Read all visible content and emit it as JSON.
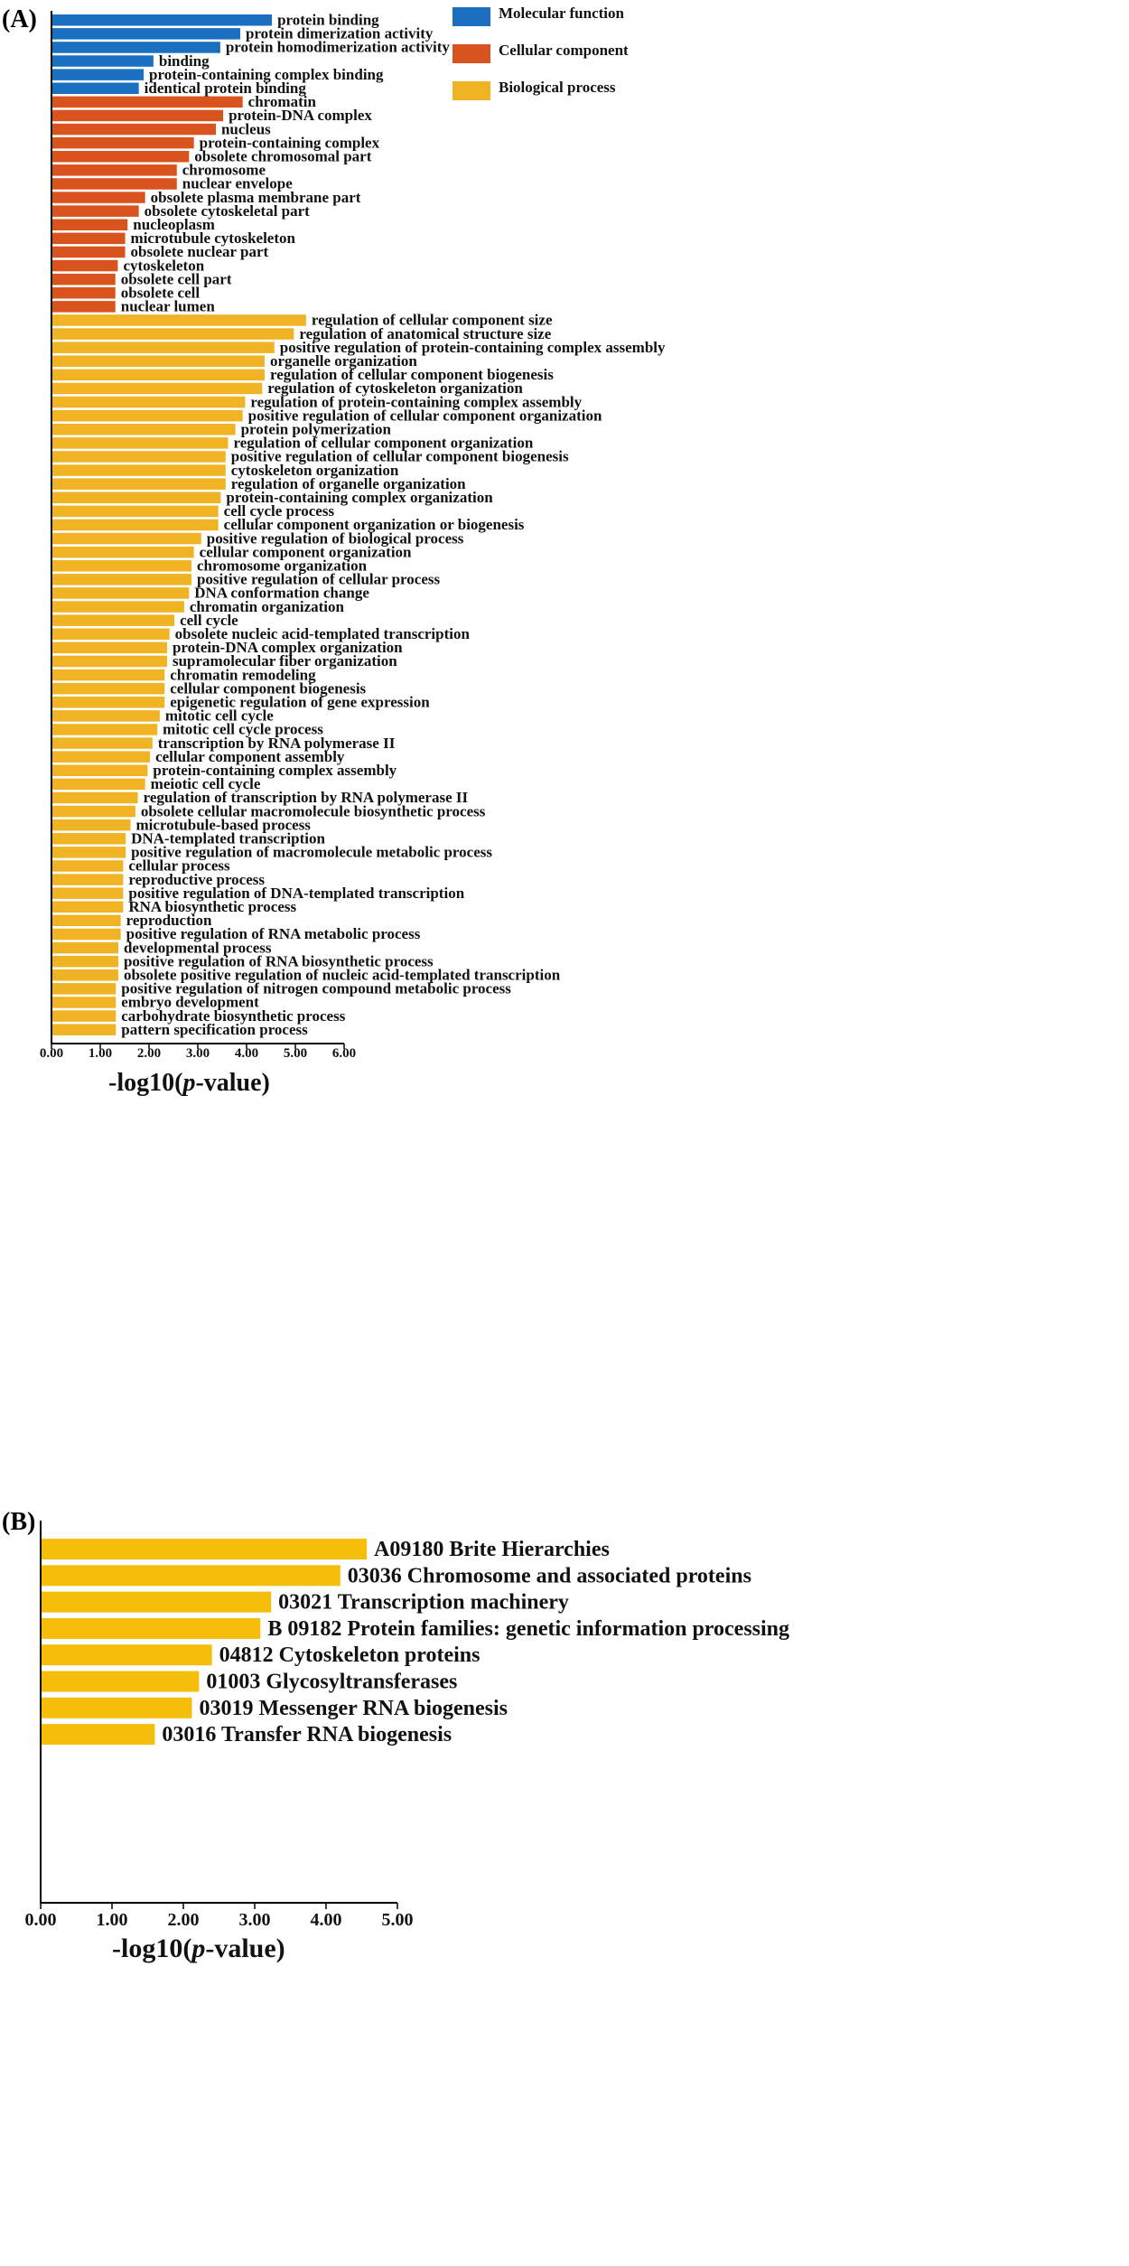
{
  "colors": {
    "molecular_function": "#1a6fc0",
    "cellular_component": "#d9531e",
    "biological_process": "#f0b323",
    "kegg": "#f5be0b"
  },
  "chart_data": [
    {
      "type": "bar",
      "orientation": "horizontal",
      "panel_label": "(A)",
      "xlabel_prefix": "-log10(",
      "xlabel_italic": "p",
      "xlabel_suffix": "-value)",
      "xlim": [
        0,
        6
      ],
      "xticks": [
        "0.00",
        "1.00",
        "2.00",
        "3.00",
        "4.00",
        "5.00",
        "6.00"
      ],
      "legend": [
        {
          "name": "Molecular function",
          "color_key": "molecular_function"
        },
        {
          "name": "Cellular component",
          "color_key": "cellular_component"
        },
        {
          "name": "Biological process",
          "color_key": "biological_process"
        }
      ],
      "bars": [
        {
          "label": "protein binding",
          "value": 4.52,
          "group": "molecular_function"
        },
        {
          "label": "protein dimerization activity",
          "value": 3.87,
          "group": "molecular_function"
        },
        {
          "label": "protein homodimerization activity",
          "value": 3.46,
          "group": "molecular_function"
        },
        {
          "label": "binding",
          "value": 2.09,
          "group": "molecular_function"
        },
        {
          "label": "protein-containing complex binding",
          "value": 1.89,
          "group": "molecular_function"
        },
        {
          "label": "identical protein binding",
          "value": 1.79,
          "group": "molecular_function"
        },
        {
          "label": "chromatin",
          "value": 3.92,
          "group": "cellular_component"
        },
        {
          "label": "protein-DNA complex",
          "value": 3.52,
          "group": "cellular_component"
        },
        {
          "label": "nucleus",
          "value": 3.37,
          "group": "cellular_component"
        },
        {
          "label": "protein-containing complex",
          "value": 2.92,
          "group": "cellular_component"
        },
        {
          "label": "obsolete chromosomal part",
          "value": 2.82,
          "group": "cellular_component"
        },
        {
          "label": "chromosome",
          "value": 2.57,
          "group": "cellular_component"
        },
        {
          "label": "nuclear envelope",
          "value": 2.57,
          "group": "cellular_component"
        },
        {
          "label": "obsolete plasma membrane part",
          "value": 1.92,
          "group": "cellular_component"
        },
        {
          "label": "obsolete cytoskeletal part",
          "value": 1.79,
          "group": "cellular_component"
        },
        {
          "label": "nucleoplasm",
          "value": 1.56,
          "group": "cellular_component"
        },
        {
          "label": "microtubule cytoskeleton",
          "value": 1.51,
          "group": "cellular_component"
        },
        {
          "label": "obsolete nuclear part",
          "value": 1.51,
          "group": "cellular_component"
        },
        {
          "label": "cytoskeleton",
          "value": 1.36,
          "group": "cellular_component"
        },
        {
          "label": "obsolete cell part",
          "value": 1.31,
          "group": "cellular_component"
        },
        {
          "label": "obsolete cell",
          "value": 1.31,
          "group": "cellular_component"
        },
        {
          "label": "nuclear lumen",
          "value": 1.31,
          "group": "cellular_component"
        },
        {
          "label": "regulation of cellular component size",
          "value": 5.22,
          "group": "biological_process"
        },
        {
          "label": "regulation of anatomical structure size",
          "value": 4.97,
          "group": "biological_process"
        },
        {
          "label": "positive regulation of protein-containing complex assembly",
          "value": 4.57,
          "group": "biological_process"
        },
        {
          "label": "organelle organization",
          "value": 4.37,
          "group": "biological_process"
        },
        {
          "label": "regulation of cellular component biogenesis",
          "value": 4.37,
          "group": "biological_process"
        },
        {
          "label": "regulation of cytoskeleton organization",
          "value": 4.32,
          "group": "biological_process"
        },
        {
          "label": "regulation of protein-containing complex assembly",
          "value": 3.97,
          "group": "biological_process"
        },
        {
          "label": "positive regulation of cellular component organization",
          "value": 3.92,
          "group": "biological_process"
        },
        {
          "label": "protein polymerization",
          "value": 3.77,
          "group": "biological_process"
        },
        {
          "label": "regulation of cellular component organization",
          "value": 3.62,
          "group": "biological_process"
        },
        {
          "label": "positive regulation of cellular component biogenesis",
          "value": 3.57,
          "group": "biological_process"
        },
        {
          "label": "cytoskeleton organization",
          "value": 3.57,
          "group": "biological_process"
        },
        {
          "label": "regulation of organelle organization",
          "value": 3.57,
          "group": "biological_process"
        },
        {
          "label": "protein-containing complex organization",
          "value": 3.47,
          "group": "biological_process"
        },
        {
          "label": "cell cycle process",
          "value": 3.42,
          "group": "biological_process"
        },
        {
          "label": "cellular component organization or biogenesis",
          "value": 3.42,
          "group": "biological_process"
        },
        {
          "label": "positive regulation of biological process",
          "value": 3.07,
          "group": "biological_process"
        },
        {
          "label": "cellular component organization",
          "value": 2.92,
          "group": "biological_process"
        },
        {
          "label": "chromosome organization",
          "value": 2.87,
          "group": "biological_process"
        },
        {
          "label": "positive regulation of cellular process",
          "value": 2.87,
          "group": "biological_process"
        },
        {
          "label": "DNA conformation change",
          "value": 2.82,
          "group": "biological_process"
        },
        {
          "label": "chromatin organization",
          "value": 2.72,
          "group": "biological_process"
        },
        {
          "label": "cell cycle",
          "value": 2.52,
          "group": "biological_process"
        },
        {
          "label": "obsolete nucleic acid-templated transcription",
          "value": 2.42,
          "group": "biological_process"
        },
        {
          "label": "protein-DNA complex organization",
          "value": 2.37,
          "group": "biological_process"
        },
        {
          "label": "supramolecular fiber organization",
          "value": 2.37,
          "group": "biological_process"
        },
        {
          "label": "chromatin remodeling",
          "value": 2.32,
          "group": "biological_process"
        },
        {
          "label": "cellular component biogenesis",
          "value": 2.32,
          "group": "biological_process"
        },
        {
          "label": "epigenetic regulation of gene expression",
          "value": 2.32,
          "group": "biological_process"
        },
        {
          "label": "mitotic cell cycle",
          "value": 2.22,
          "group": "biological_process"
        },
        {
          "label": "mitotic cell cycle process",
          "value": 2.17,
          "group": "biological_process"
        },
        {
          "label": "transcription by RNA polymerase II",
          "value": 2.07,
          "group": "biological_process"
        },
        {
          "label": "cellular component assembly",
          "value": 2.02,
          "group": "biological_process"
        },
        {
          "label": "protein-containing complex assembly",
          "value": 1.97,
          "group": "biological_process"
        },
        {
          "label": "meiotic cell cycle",
          "value": 1.92,
          "group": "biological_process"
        },
        {
          "label": "regulation of transcription by RNA polymerase II",
          "value": 1.77,
          "group": "biological_process"
        },
        {
          "label": "obsolete cellular macromolecule biosynthetic process",
          "value": 1.72,
          "group": "biological_process"
        },
        {
          "label": "microtubule-based process",
          "value": 1.62,
          "group": "biological_process"
        },
        {
          "label": "DNA-templated transcription",
          "value": 1.52,
          "group": "biological_process"
        },
        {
          "label": "positive regulation of macromolecule metabolic process",
          "value": 1.52,
          "group": "biological_process"
        },
        {
          "label": "cellular process",
          "value": 1.47,
          "group": "biological_process"
        },
        {
          "label": "reproductive process",
          "value": 1.47,
          "group": "biological_process"
        },
        {
          "label": "positive regulation of DNA-templated transcription",
          "value": 1.47,
          "group": "biological_process"
        },
        {
          "label": "RNA biosynthetic process",
          "value": 1.47,
          "group": "biological_process"
        },
        {
          "label": "reproduction",
          "value": 1.42,
          "group": "biological_process"
        },
        {
          "label": "positive regulation of RNA metabolic process",
          "value": 1.42,
          "group": "biological_process"
        },
        {
          "label": "developmental process",
          "value": 1.37,
          "group": "biological_process"
        },
        {
          "label": "positive regulation of RNA biosynthetic process",
          "value": 1.37,
          "group": "biological_process"
        },
        {
          "label": "obsolete positive regulation of nucleic acid-templated transcription",
          "value": 1.37,
          "group": "biological_process"
        },
        {
          "label": "positive regulation of nitrogen compound metabolic process",
          "value": 1.32,
          "group": "biological_process"
        },
        {
          "label": "embryo development",
          "value": 1.32,
          "group": "biological_process"
        },
        {
          "label": "carbohydrate biosynthetic process",
          "value": 1.32,
          "group": "biological_process"
        },
        {
          "label": "pattern specification process",
          "value": 1.32,
          "group": "biological_process"
        }
      ]
    },
    {
      "type": "bar",
      "orientation": "horizontal",
      "panel_label": "(B)",
      "xlabel_prefix": "-log10(",
      "xlabel_italic": "p",
      "xlabel_suffix": "-value)",
      "xlim": [
        0,
        5
      ],
      "xticks": [
        "0.00",
        "1.00",
        "2.00",
        "3.00",
        "4.00",
        "5.00"
      ],
      "bars": [
        {
          "label": "A09180 Brite Hierarchies",
          "value": 4.57
        },
        {
          "label": "03036 Chromosome and associated proteins",
          "value": 4.2
        },
        {
          "label": "03021 Transcription machinery",
          "value": 3.23
        },
        {
          "label": "B  09182 Protein families: genetic information processing",
          "value": 3.08
        },
        {
          "label": "04812 Cytoskeleton proteins",
          "value": 2.4
        },
        {
          "label": "01003 Glycosyltransferases",
          "value": 2.22
        },
        {
          "label": "03019 Messenger RNA biogenesis",
          "value": 2.12
        },
        {
          "label": "03016 Transfer RNA biogenesis",
          "value": 1.6
        }
      ]
    }
  ]
}
